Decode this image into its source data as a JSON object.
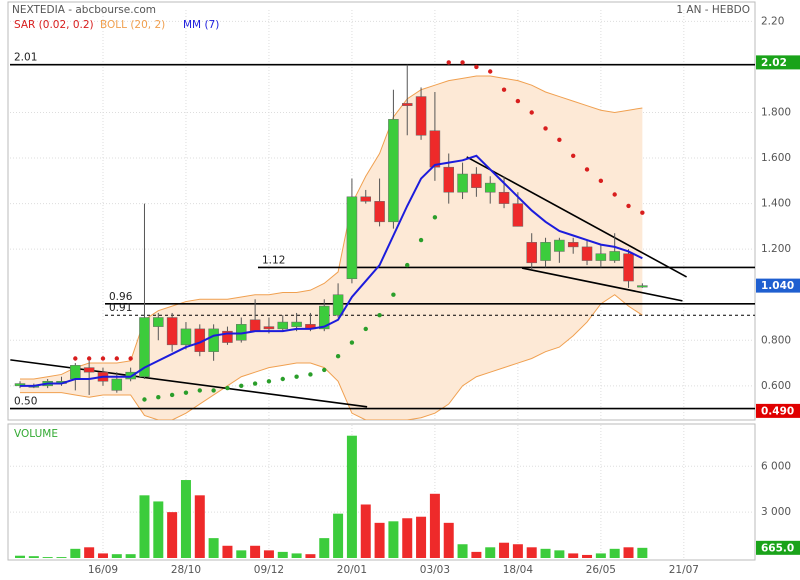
{
  "header": {
    "title": "NEXTEDIA - abcbourse.com",
    "period": "1 AN - HEBDO"
  },
  "chart_data": [
    {
      "type": "candlestick",
      "categories": [
        null,
        null,
        null,
        null,
        null,
        null,
        "16/09",
        null,
        null,
        null,
        null,
        null,
        "28/10",
        null,
        null,
        null,
        null,
        null,
        "09/12",
        null,
        null,
        null,
        null,
        null,
        "20/01",
        null,
        null,
        null,
        null,
        null,
        "03/03",
        null,
        null,
        null,
        null,
        null,
        "18/04",
        null,
        null,
        null,
        null,
        null,
        "26/05",
        null,
        null,
        null,
        null,
        null,
        "21/07"
      ],
      "open": [
        0.6,
        0.6,
        0.6,
        0.61,
        0.63,
        0.68,
        0.66,
        0.58,
        0.63,
        0.64,
        0.86,
        0.9,
        0.78,
        0.85,
        0.75,
        0.84,
        0.8,
        0.89,
        0.86,
        0.85,
        0.86,
        0.87,
        0.85,
        0.91,
        1.07,
        1.43,
        1.41,
        1.32,
        1.84,
        1.87,
        1.72,
        1.56,
        1.45,
        1.53,
        1.45,
        1.45,
        1.4,
        1.23,
        1.15,
        1.19,
        1.23,
        1.21,
        1.15,
        1.15,
        1.18,
        1.04,
        null,
        null,
        null
      ],
      "high": [
        0.62,
        0.61,
        0.63,
        0.64,
        0.7,
        0.71,
        0.68,
        0.66,
        0.68,
        1.4,
        0.92,
        0.92,
        0.88,
        0.87,
        0.87,
        0.86,
        0.9,
        0.98,
        0.9,
        0.91,
        0.92,
        0.92,
        0.98,
        1.05,
        1.51,
        1.46,
        1.51,
        1.9,
        2.01,
        1.91,
        1.89,
        1.62,
        1.58,
        1.56,
        1.52,
        1.52,
        1.45,
        1.27,
        1.25,
        1.25,
        1.25,
        1.24,
        1.22,
        1.27,
        1.2,
        1.05,
        null,
        null,
        null
      ],
      "low": [
        0.59,
        0.59,
        0.59,
        0.6,
        0.58,
        0.56,
        0.6,
        0.57,
        0.62,
        0.63,
        0.8,
        0.75,
        0.76,
        0.73,
        0.71,
        0.78,
        0.79,
        0.84,
        0.83,
        0.84,
        0.84,
        0.84,
        0.84,
        0.9,
        1.05,
        1.4,
        1.3,
        1.29,
        1.7,
        1.68,
        1.5,
        1.4,
        1.42,
        1.43,
        1.4,
        1.38,
        1.3,
        1.11,
        1.12,
        1.14,
        1.18,
        1.13,
        1.12,
        1.14,
        1.03,
        1.03,
        null,
        null,
        null
      ],
      "close": [
        0.61,
        0.6,
        0.62,
        0.62,
        0.69,
        0.66,
        0.62,
        0.63,
        0.66,
        0.9,
        0.9,
        0.78,
        0.85,
        0.75,
        0.85,
        0.79,
        0.87,
        0.84,
        0.85,
        0.88,
        0.88,
        0.85,
        0.95,
        1.0,
        1.43,
        1.41,
        1.32,
        1.77,
        1.83,
        1.7,
        1.56,
        1.45,
        1.53,
        1.47,
        1.49,
        1.4,
        1.3,
        1.14,
        1.23,
        1.24,
        1.21,
        1.15,
        1.18,
        1.19,
        1.06,
        1.04,
        null,
        null,
        null
      ],
      "up_color": "#3ccc3c",
      "down_color": "#ee2a2a",
      "series": [
        {
          "name": "SAR (0.02, 0.2)",
          "color": "#d81e1e",
          "color_below": "#2a9e2a",
          "values": [
            null,
            null,
            null,
            null,
            0.72,
            0.72,
            0.72,
            0.72,
            0.72,
            0.54,
            0.55,
            0.56,
            0.57,
            0.58,
            0.58,
            0.59,
            0.6,
            0.61,
            0.62,
            0.63,
            0.64,
            0.65,
            0.67,
            0.73,
            0.79,
            0.85,
            0.91,
            1.0,
            1.13,
            1.24,
            1.34,
            2.02,
            2.02,
            2.0,
            1.98,
            1.9,
            1.85,
            1.8,
            1.73,
            1.68,
            1.61,
            1.55,
            1.5,
            1.44,
            1.39,
            1.36,
            null,
            null,
            null
          ]
        },
        {
          "name": "BOLL (20, 2)",
          "color": "#f0a050",
          "fill": "#fde9d6",
          "upper": [
            0.63,
            0.63,
            0.64,
            0.65,
            0.68,
            0.7,
            0.7,
            0.7,
            0.71,
            0.89,
            0.93,
            0.95,
            0.97,
            0.98,
            0.98,
            0.98,
            0.99,
            1.0,
            1.0,
            1.01,
            1.01,
            1.02,
            1.05,
            1.1,
            1.4,
            1.52,
            1.62,
            1.78,
            1.86,
            1.9,
            1.92,
            1.94,
            1.95,
            1.96,
            1.96,
            1.95,
            1.94,
            1.92,
            1.89,
            1.87,
            1.85,
            1.83,
            1.81,
            1.8,
            1.81,
            1.82,
            null,
            null,
            null
          ],
          "lower": [
            0.57,
            0.57,
            0.57,
            0.57,
            0.56,
            0.55,
            0.56,
            0.56,
            0.56,
            0.47,
            0.45,
            0.45,
            0.48,
            0.52,
            0.56,
            0.6,
            0.64,
            0.66,
            0.68,
            0.69,
            0.7,
            0.7,
            0.68,
            0.62,
            0.48,
            0.45,
            0.45,
            0.45,
            0.45,
            0.46,
            0.48,
            0.52,
            0.6,
            0.64,
            0.66,
            0.68,
            0.7,
            0.72,
            0.75,
            0.77,
            0.82,
            0.88,
            0.96,
            1.0,
            0.95,
            0.91,
            null,
            null,
            null
          ]
        },
        {
          "name": "MM (7)",
          "color": "#1c1cdc",
          "values": [
            0.6,
            0.6,
            0.61,
            0.61,
            0.63,
            0.63,
            0.64,
            0.64,
            0.64,
            0.68,
            0.71,
            0.74,
            0.77,
            0.79,
            0.82,
            0.83,
            0.83,
            0.84,
            0.84,
            0.84,
            0.85,
            0.85,
            0.86,
            0.89,
            0.99,
            1.06,
            1.13,
            1.26,
            1.39,
            1.51,
            1.57,
            1.58,
            1.59,
            1.61,
            1.55,
            1.49,
            1.43,
            1.37,
            1.32,
            1.28,
            1.26,
            1.24,
            1.22,
            1.21,
            1.19,
            1.16,
            null,
            null,
            null
          ]
        }
      ],
      "ylim": [
        0.45,
        2.25
      ],
      "yticks": [
        {
          "value": 2.2,
          "label": "2.20"
        },
        {
          "value": 1.8,
          "label": "1.800"
        },
        {
          "value": 1.6,
          "label": "1.600"
        },
        {
          "value": 1.4,
          "label": "1.400"
        },
        {
          "value": 1.2,
          "label": "1.200"
        },
        {
          "value": 0.8,
          "label": "0.800"
        },
        {
          "value": 0.6,
          "label": "0.600"
        }
      ],
      "grid": true,
      "levels": [
        {
          "value": 2.01,
          "label": "2.01"
        },
        {
          "value": 1.12,
          "label": "1.12"
        },
        {
          "value": 0.96,
          "label": "0.96"
        },
        {
          "value": 0.91,
          "label": "0.91",
          "dashed": true
        },
        {
          "value": 0.5,
          "label": "0.50"
        }
      ],
      "price_tags": [
        {
          "value": 2.02,
          "label": "2.02",
          "color": "#1aa31a"
        },
        {
          "value": 1.04,
          "label": "1.040",
          "color": "#1f5fd0"
        },
        {
          "value": 0.49,
          "label": "0.490",
          "color": "#e00000"
        }
      ],
      "trendlines": [
        {
          "x": [
            -0.7,
            25.1
          ],
          "y": [
            0.714,
            0.508
          ]
        },
        {
          "x": [
            32.3,
            48.2
          ],
          "y": [
            1.605,
            1.078
          ]
        },
        {
          "x": [
            36.3,
            47.9
          ],
          "y": [
            1.117,
            0.973
          ]
        }
      ]
    },
    {
      "type": "bar",
      "title": "VOLUME",
      "values": [
        150,
        120,
        60,
        60,
        600,
        700,
        300,
        250,
        250,
        4100,
        3700,
        3000,
        5100,
        4100,
        1300,
        800,
        500,
        800,
        500,
        400,
        300,
        250,
        1300,
        2900,
        8000,
        3500,
        2300,
        2400,
        2600,
        2700,
        4200,
        2300,
        900,
        400,
        700,
        1000,
        900,
        700,
        600,
        500,
        300,
        200,
        300,
        600,
        700,
        665,
        null,
        null,
        null
      ],
      "ylim": [
        0,
        8700
      ],
      "yticks": [
        {
          "value": 6000,
          "label": "6 000"
        },
        {
          "value": 3000,
          "label": "3 000"
        }
      ],
      "last_tag": {
        "value": 665,
        "label": "665.0",
        "color": "#1aa31a"
      }
    }
  ]
}
